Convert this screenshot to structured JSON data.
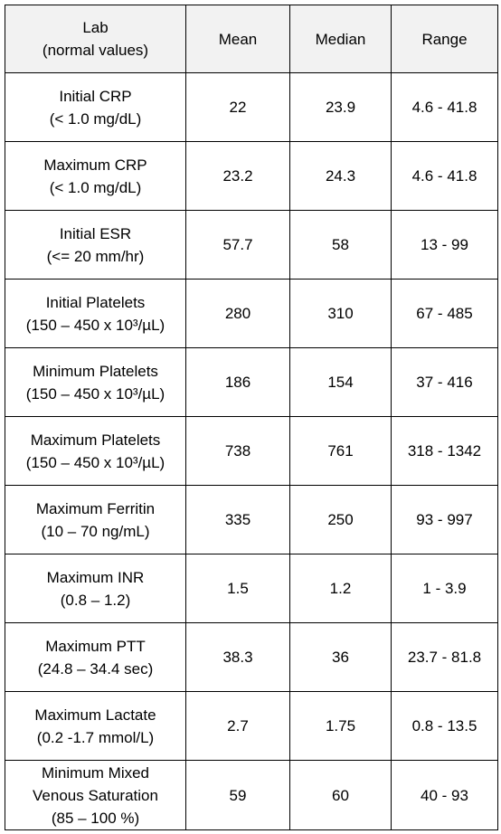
{
  "header": {
    "lab_line1": "Lab",
    "lab_line2": "(normal values)",
    "mean": "Mean",
    "median": "Median",
    "range": "Range"
  },
  "rows": [
    {
      "lab_lines": [
        "Initial CRP",
        "(< 1.0 mg/dL)"
      ],
      "mean": "22",
      "median": "23.9",
      "range": "4.6 - 41.8"
    },
    {
      "lab_lines": [
        "Maximum CRP",
        "(< 1.0 mg/dL)"
      ],
      "mean": "23.2",
      "median": "24.3",
      "range": "4.6 - 41.8"
    },
    {
      "lab_lines": [
        "Initial ESR",
        "(<= 20 mm/hr)"
      ],
      "mean": "57.7",
      "median": "58",
      "range": "13 - 99"
    },
    {
      "lab_lines": [
        "Initial Platelets",
        "(150 – 450 x 10³/µL)"
      ],
      "mean": "280",
      "median": "310",
      "range": "67 - 485"
    },
    {
      "lab_lines": [
        "Minimum Platelets",
        "(150 – 450 x 10³/µL)"
      ],
      "mean": "186",
      "median": "154",
      "range": "37 - 416"
    },
    {
      "lab_lines": [
        "Maximum Platelets",
        "(150 – 450 x 10³/µL)"
      ],
      "mean": "738",
      "median": "761",
      "range": "318 - 1342"
    },
    {
      "lab_lines": [
        "Maximum Ferritin",
        "(10 – 70 ng/mL)"
      ],
      "mean": "335",
      "median": "250",
      "range": "93 - 997"
    },
    {
      "lab_lines": [
        "Maximum INR",
        "(0.8 – 1.2)"
      ],
      "mean": "1.5",
      "median": "1.2",
      "range": "1 - 3.9"
    },
    {
      "lab_lines": [
        "Maximum PTT",
        "(24.8 – 34.4 sec)"
      ],
      "mean": "38.3",
      "median": "36",
      "range": "23.7 - 81.8"
    },
    {
      "lab_lines": [
        "Maximum Lactate",
        "(0.2 -1.7 mmol/L)"
      ],
      "mean": "2.7",
      "median": "1.75",
      "range": "0.8 - 13.5"
    },
    {
      "lab_lines": [
        "Minimum Mixed",
        "Venous Saturation",
        "(85 – 100 %)"
      ],
      "mean": "59",
      "median": "60",
      "range": "40 - 93"
    }
  ]
}
